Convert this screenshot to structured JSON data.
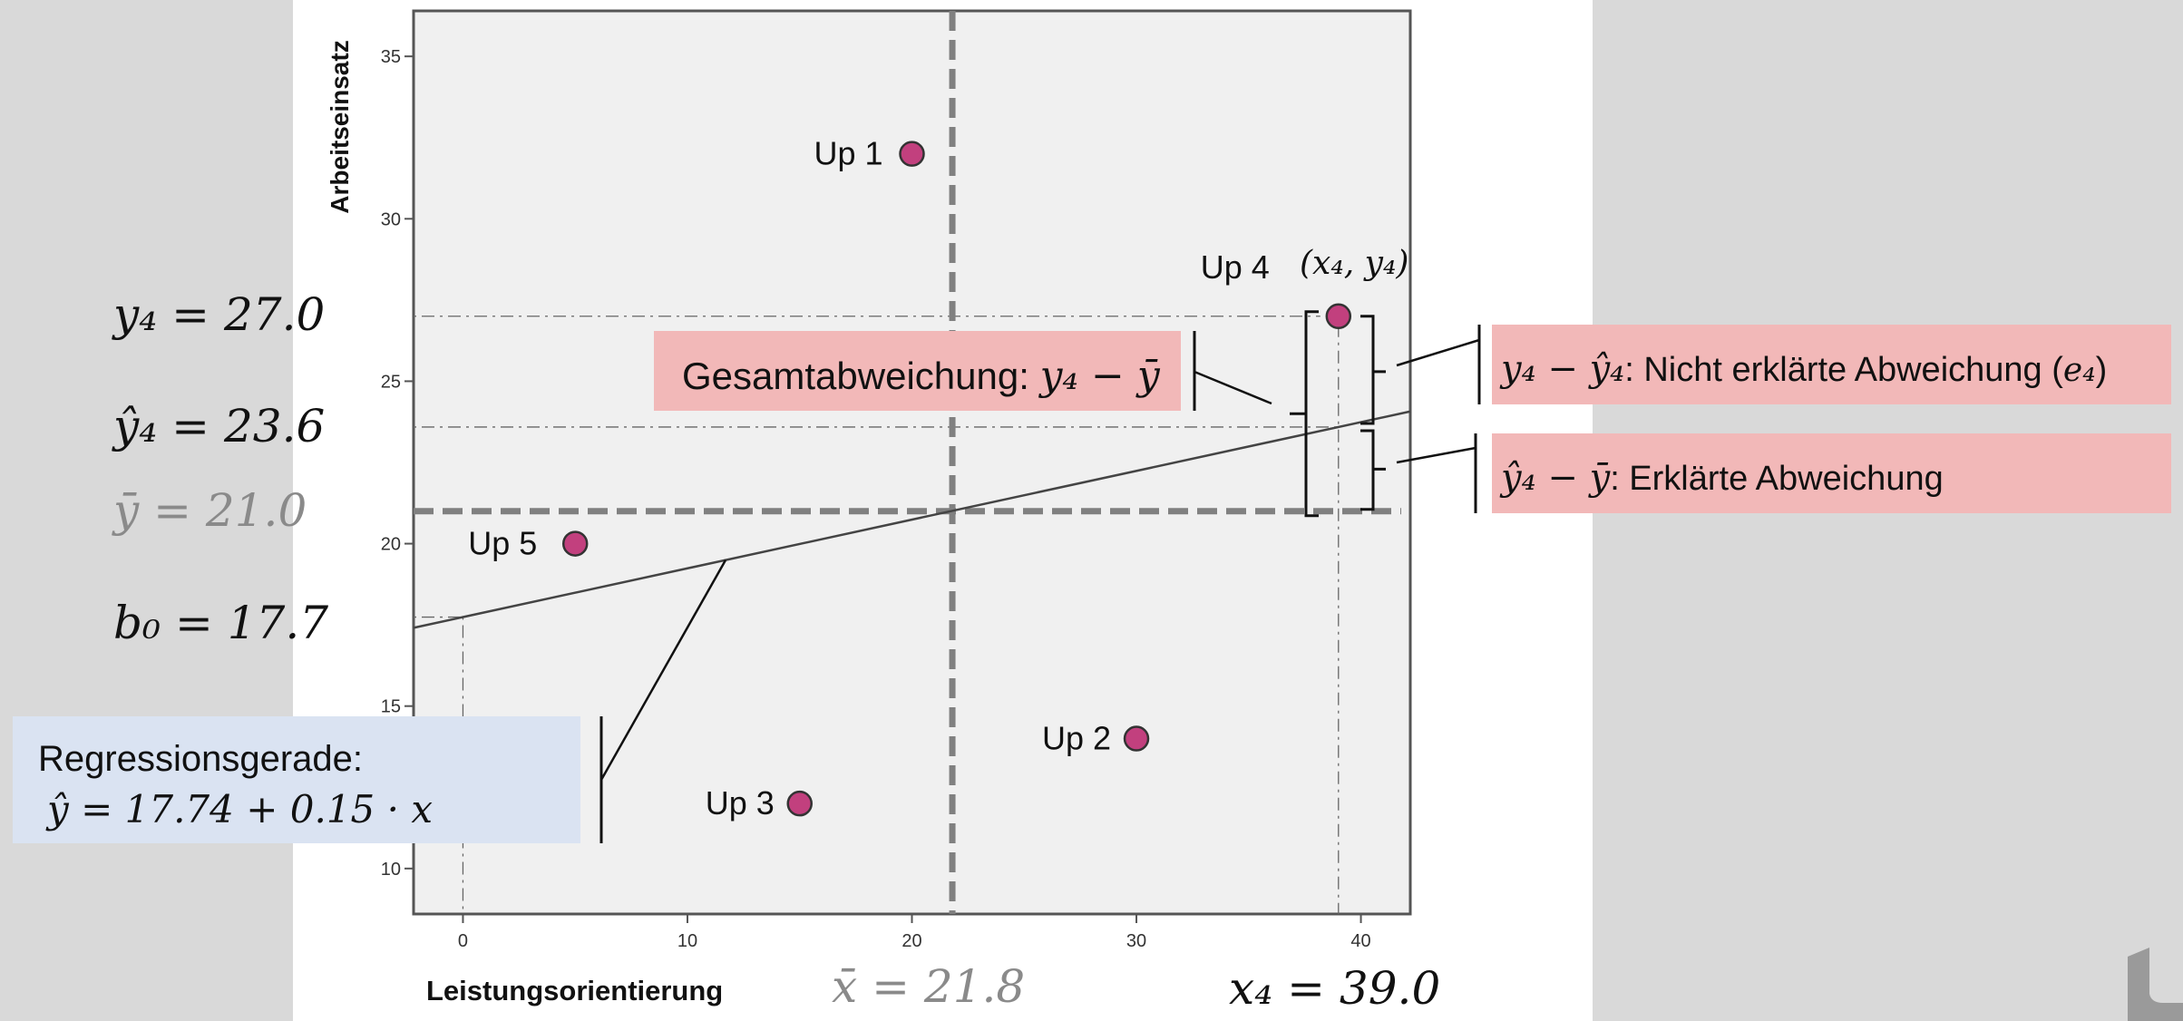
{
  "chart_data": {
    "type": "scatter",
    "xlabel": "Leistungsorientierung",
    "ylabel": "Arbeitseinsatz",
    "xlim": [
      -2.2,
      42.2
    ],
    "ylim": [
      8.6,
      36.4
    ],
    "x_ticks": [
      "0",
      "10",
      "20",
      "30",
      "40"
    ],
    "y_ticks": [
      "10",
      "15",
      "20",
      "25",
      "30",
      "35"
    ],
    "x_tick_values": [
      0,
      10,
      20,
      30,
      40
    ],
    "y_tick_values": [
      10,
      15,
      20,
      25,
      30,
      35
    ],
    "points": [
      {
        "label": "Up 1",
        "x": 20,
        "y": 32
      },
      {
        "label": "Up 2",
        "x": 30,
        "y": 14
      },
      {
        "label": "Up 3",
        "x": 15,
        "y": 12
      },
      {
        "label": "Up 4",
        "x": 39,
        "y": 27
      },
      {
        "label": "Up 5",
        "x": 5,
        "y": 20
      }
    ],
    "point4_coords_label": "(x₄, y₄)",
    "mean_x": 21.8,
    "mean_y": 21.0,
    "regression": {
      "intercept": 17.74,
      "slope": 0.15
    },
    "point_color": "#c2407e",
    "grid": false
  },
  "annotations": {
    "y4": "y₄ = 27.0",
    "y4hat": "ŷ₄ = 23.6",
    "ybar": "ȳ  = 21.0",
    "b0": "b₀ = 17.7",
    "xbar": "x̄ = 21.8",
    "x4": "x₄ = 39.0",
    "regression_title": "Regressionsgerade:",
    "regression_formula": "ŷ = 17.74 + 0.15 · x",
    "total_dev_label": "Gesamtabweichung: ",
    "total_dev_math": "y₄ − ȳ",
    "unexplained_math": "y₄ − ŷ₄",
    "unexplained_text": ": Nicht erklärte Abweichung (",
    "unexplained_e4": "e₄",
    "unexplained_close": ")",
    "explained_math": "ŷ₄ − ȳ",
    "explained_text": ": Erklärte Abweichung"
  },
  "colors": {
    "pink_box": "#f2b8b8",
    "blue_box": "#dae3f2",
    "plot_bg": "#f0f0f0",
    "mean_line": "#808080",
    "grey_text": "#8a8a8a"
  }
}
